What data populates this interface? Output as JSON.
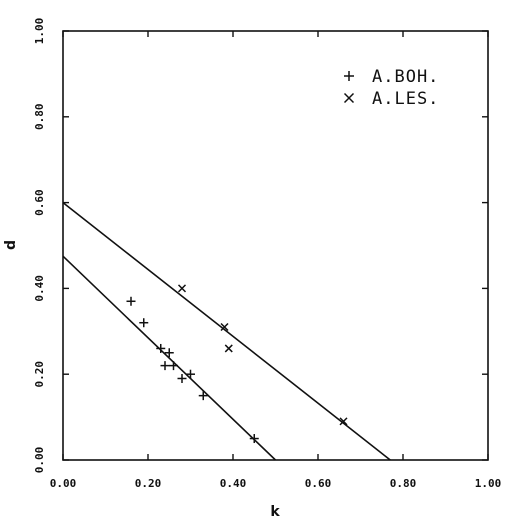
{
  "chart_data": {
    "type": "scatter",
    "title": "",
    "xlabel": "k",
    "ylabel": "d",
    "xlim": [
      0,
      1
    ],
    "ylim": [
      0,
      1
    ],
    "x_ticks": [
      "0.00",
      "0.20",
      "0.40",
      "0.60",
      "0.80",
      "1.00"
    ],
    "y_ticks": [
      "0.00",
      "0.20",
      "0.40",
      "0.60",
      "0.80",
      "1.00"
    ],
    "grid": false,
    "legend_position": "top-right",
    "series": [
      {
        "name": "A.BOH.",
        "marker": "plus",
        "points": [
          {
            "x": 0.16,
            "y": 0.37
          },
          {
            "x": 0.19,
            "y": 0.32
          },
          {
            "x": 0.23,
            "y": 0.26
          },
          {
            "x": 0.25,
            "y": 0.25
          },
          {
            "x": 0.24,
            "y": 0.22
          },
          {
            "x": 0.26,
            "y": 0.22
          },
          {
            "x": 0.3,
            "y": 0.2
          },
          {
            "x": 0.28,
            "y": 0.19
          },
          {
            "x": 0.33,
            "y": 0.15
          },
          {
            "x": 0.45,
            "y": 0.05
          }
        ]
      },
      {
        "name": "A.LES.",
        "marker": "cross",
        "points": [
          {
            "x": 0.28,
            "y": 0.4
          },
          {
            "x": 0.38,
            "y": 0.31
          },
          {
            "x": 0.39,
            "y": 0.26
          },
          {
            "x": 0.66,
            "y": 0.09
          }
        ]
      }
    ],
    "fit_lines": [
      {
        "series": "A.BOH.",
        "x1": 0.0,
        "y1": 0.475,
        "x2": 0.5,
        "y2": 0.0
      },
      {
        "series": "A.LES.",
        "x1": 0.0,
        "y1": 0.6,
        "x2": 0.77,
        "y2": 0.0
      }
    ]
  }
}
